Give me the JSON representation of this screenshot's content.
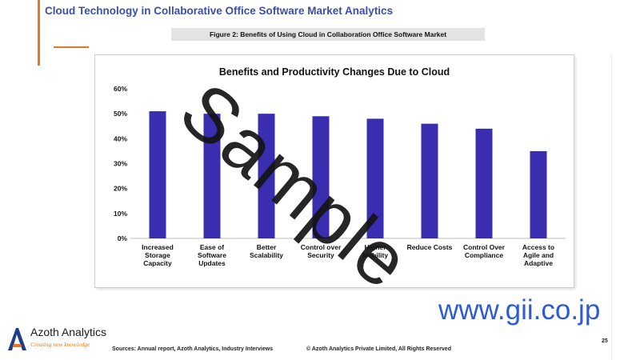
{
  "header": {
    "title": "Cloud Technology in Collaborative Office Software Market Analytics",
    "figure_caption": "Figure 2: Benefits of Using Cloud in Collaboration Office Software Market"
  },
  "chart_data": {
    "type": "bar",
    "title": "Benefits and Productivity Changes Due to Cloud",
    "categories": [
      "Increased Storage Capacity",
      "Ease of Software Updates",
      "Better Scalability",
      "Control over Security",
      "Higher Mobility",
      "Reduce Costs",
      "Control Over Compliance",
      "Access to Agile and Adaptive"
    ],
    "category_lines": [
      [
        "Increased",
        "Storage",
        "Capacity"
      ],
      [
        "Ease of",
        "Software",
        "Updates"
      ],
      [
        "Better",
        "Scalability"
      ],
      [
        "Control over",
        "Security"
      ],
      [
        "Higher",
        "Mobility"
      ],
      [
        "Reduce Costs"
      ],
      [
        "Control Over",
        "Compliance"
      ],
      [
        "Access to",
        "Agile and",
        "Adaptive"
      ]
    ],
    "values": [
      51,
      50,
      50,
      49,
      48,
      46,
      44,
      35
    ],
    "ylim": [
      0,
      60
    ],
    "yticks": [
      "0%",
      "10%",
      "20%",
      "30%",
      "40%",
      "50%",
      "60%"
    ],
    "xlabel": "",
    "ylabel": "",
    "grid": false,
    "legend": "none",
    "bar_color": "#3A2DB0"
  },
  "footer": {
    "sources": "Sources: Annual report, Azoth Analytics, Industry Interviews",
    "copyright": "© Azoth Analytics Private Limited, All Rights Reserved",
    "page_number": "25"
  },
  "logo": {
    "name": "Azoth Analytics",
    "tagline": "Creating new knowledge"
  },
  "watermarks": {
    "sample": "Sample",
    "url": "www.gii.co.jp"
  }
}
